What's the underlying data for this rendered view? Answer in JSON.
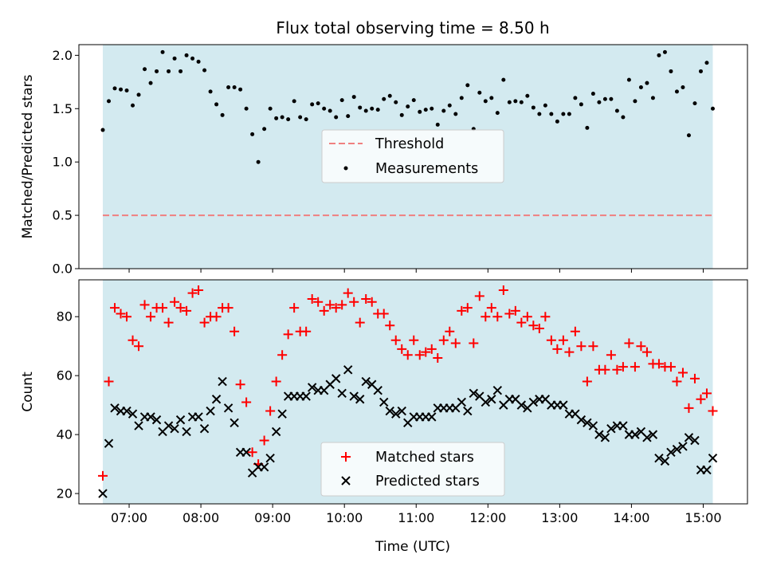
{
  "chart_data": [
    {
      "type": "scatter",
      "title": "Flux total observing time = 8.50 h",
      "xlabel": "",
      "ylabel": "Matched/Predicted stars",
      "xlim": [
        "06:18",
        "15:37"
      ],
      "ylim": [
        0,
        2.1
      ],
      "yticks": [
        0.0,
        0.5,
        1.0,
        1.5,
        2.0
      ],
      "ytick_labels": [
        "0.0",
        "0.5",
        "1.0",
        "1.5",
        "2.0"
      ],
      "xticks": [
        "07:00",
        "08:00",
        "09:00",
        "10:00",
        "11:00",
        "12:00",
        "13:00",
        "14:00",
        "15:00"
      ],
      "shaded_span": [
        "06:38",
        "15:08"
      ],
      "shade_color": "#d3eaf0",
      "legend": {
        "placement": "center",
        "entries": [
          "Threshold",
          "Measurements"
        ]
      },
      "threshold": {
        "name": "Threshold",
        "y": 0.5,
        "color": "#f08080",
        "style": "dashed"
      },
      "series": [
        {
          "name": "Measurements",
          "marker": "dot",
          "color": "#000000",
          "x": [
            "06:38",
            "06:43",
            "06:48",
            "06:53",
            "06:58",
            "07:03",
            "07:08",
            "07:13",
            "07:18",
            "07:23",
            "07:28",
            "07:33",
            "07:38",
            "07:43",
            "07:48",
            "07:53",
            "07:58",
            "08:03",
            "08:08",
            "08:13",
            "08:18",
            "08:23",
            "08:28",
            "08:33",
            "08:38",
            "08:43",
            "08:48",
            "08:53",
            "08:58",
            "09:03",
            "09:08",
            "09:13",
            "09:18",
            "09:23",
            "09:28",
            "09:33",
            "09:38",
            "09:43",
            "09:48",
            "09:53",
            "09:58",
            "10:03",
            "10:08",
            "10:13",
            "10:18",
            "10:23",
            "10:28",
            "10:33",
            "10:38",
            "10:43",
            "10:48",
            "10:53",
            "10:58",
            "11:03",
            "11:08",
            "11:13",
            "11:18",
            "11:23",
            "11:28",
            "11:33",
            "11:38",
            "11:43",
            "11:48",
            "11:53",
            "11:58",
            "12:03",
            "12:08",
            "12:13",
            "12:18",
            "12:23",
            "12:28",
            "12:33",
            "12:38",
            "12:43",
            "12:48",
            "12:53",
            "12:58",
            "13:03",
            "13:08",
            "13:13",
            "13:18",
            "13:23",
            "13:28",
            "13:33",
            "13:38",
            "13:43",
            "13:48",
            "13:53",
            "13:58",
            "14:03",
            "14:08",
            "14:13",
            "14:18",
            "14:23",
            "14:28",
            "14:33",
            "14:38",
            "14:43",
            "14:48",
            "14:53",
            "14:58",
            "15:03",
            "15:08"
          ],
          "y": [
            1.3,
            1.57,
            1.69,
            1.68,
            1.67,
            1.53,
            1.63,
            1.87,
            1.74,
            1.85,
            2.03,
            1.85,
            1.97,
            1.85,
            2.0,
            1.97,
            1.94,
            1.86,
            1.66,
            1.54,
            1.44,
            1.7,
            1.7,
            1.68,
            1.5,
            1.26,
            1.0,
            1.31,
            1.5,
            1.41,
            1.42,
            1.4,
            1.57,
            1.42,
            1.4,
            1.54,
            1.55,
            1.5,
            1.48,
            1.42,
            1.58,
            1.43,
            1.61,
            1.51,
            1.48,
            1.5,
            1.49,
            1.59,
            1.62,
            1.56,
            1.44,
            1.52,
            1.58,
            1.47,
            1.49,
            1.5,
            1.35,
            1.48,
            1.53,
            1.45,
            1.6,
            1.72,
            1.31,
            1.65,
            1.57,
            1.6,
            1.46,
            1.77,
            1.56,
            1.57,
            1.56,
            1.62,
            1.51,
            1.45,
            1.53,
            1.45,
            1.38,
            1.45,
            1.45,
            1.6,
            1.54,
            1.32,
            1.64,
            1.56,
            1.59,
            1.59,
            1.48,
            1.42,
            1.77,
            1.57,
            1.7,
            1.74,
            1.6,
            2.0,
            2.03,
            1.85,
            1.66,
            1.7,
            1.25,
            1.55,
            1.85,
            1.93,
            1.5
          ]
        }
      ]
    },
    {
      "type": "scatter",
      "title": "",
      "xlabel": "Time (UTC)",
      "ylabel": "Count",
      "xlim": [
        "06:18",
        "15:37"
      ],
      "ylim": [
        16.5,
        92.5
      ],
      "yticks": [
        20,
        40,
        60,
        80
      ],
      "ytick_labels": [
        "20",
        "40",
        "60",
        "80"
      ],
      "xticks": [
        "07:00",
        "08:00",
        "09:00",
        "10:00",
        "11:00",
        "12:00",
        "13:00",
        "14:00",
        "15:00"
      ],
      "xtick_labels": [
        "07:00",
        "08:00",
        "09:00",
        "10:00",
        "11:00",
        "12:00",
        "13:00",
        "14:00",
        "15:00"
      ],
      "shaded_span": [
        "06:38",
        "15:08"
      ],
      "shade_color": "#d3eaf0",
      "legend": {
        "placement": "lower-center",
        "entries": [
          "Matched stars",
          "Predicted stars"
        ]
      },
      "series": [
        {
          "name": "Matched stars",
          "marker": "plus",
          "color": "#ff0000",
          "x": [
            "06:38",
            "06:43",
            "06:48",
            "06:53",
            "06:58",
            "07:03",
            "07:08",
            "07:13",
            "07:18",
            "07:23",
            "07:28",
            "07:33",
            "07:38",
            "07:43",
            "07:48",
            "07:53",
            "07:58",
            "08:03",
            "08:08",
            "08:13",
            "08:18",
            "08:23",
            "08:28",
            "08:33",
            "08:38",
            "08:43",
            "08:48",
            "08:53",
            "08:58",
            "09:03",
            "09:08",
            "09:13",
            "09:18",
            "09:23",
            "09:28",
            "09:33",
            "09:38",
            "09:43",
            "09:48",
            "09:53",
            "09:58",
            "10:03",
            "10:08",
            "10:13",
            "10:18",
            "10:23",
            "10:28",
            "10:33",
            "10:38",
            "10:43",
            "10:48",
            "10:53",
            "10:58",
            "11:03",
            "11:08",
            "11:13",
            "11:18",
            "11:23",
            "11:28",
            "11:33",
            "11:38",
            "11:43",
            "11:48",
            "11:53",
            "11:58",
            "12:03",
            "12:08",
            "12:13",
            "12:18",
            "12:23",
            "12:28",
            "12:33",
            "12:38",
            "12:43",
            "12:48",
            "12:53",
            "12:58",
            "13:03",
            "13:08",
            "13:13",
            "13:18",
            "13:23",
            "13:28",
            "13:33",
            "13:38",
            "13:43",
            "13:48",
            "13:53",
            "13:58",
            "14:03",
            "14:08",
            "14:13",
            "14:18",
            "14:23",
            "14:28",
            "14:33",
            "14:38",
            "14:43",
            "14:48",
            "14:53",
            "14:58",
            "15:03",
            "15:08"
          ],
          "y": [
            26,
            58,
            83,
            81,
            80,
            72,
            70,
            84,
            80,
            83,
            83,
            78,
            85,
            83,
            82,
            88,
            89,
            78,
            80,
            80,
            83,
            83,
            75,
            57,
            51,
            34,
            30,
            38,
            48,
            58,
            67,
            74,
            83,
            75,
            75,
            86,
            85,
            82,
            84,
            83,
            84,
            88,
            85,
            78,
            86,
            85,
            81,
            81,
            77,
            72,
            69,
            67,
            72,
            67,
            68,
            69,
            66,
            72,
            75,
            71,
            82,
            83,
            71,
            87,
            80,
            83,
            80,
            89,
            81,
            82,
            78,
            80,
            77,
            76,
            80,
            72,
            69,
            72,
            68,
            75,
            70,
            58,
            70,
            62,
            62,
            67,
            62,
            63,
            71,
            63,
            70,
            68,
            64,
            64,
            63,
            63,
            58,
            61,
            49,
            59,
            52,
            54,
            48
          ]
        },
        {
          "name": "Predicted stars",
          "marker": "x",
          "color": "#000000",
          "x": [
            "06:38",
            "06:43",
            "06:48",
            "06:53",
            "06:58",
            "07:03",
            "07:08",
            "07:13",
            "07:18",
            "07:23",
            "07:28",
            "07:33",
            "07:38",
            "07:43",
            "07:48",
            "07:53",
            "07:58",
            "08:03",
            "08:08",
            "08:13",
            "08:18",
            "08:23",
            "08:28",
            "08:33",
            "08:38",
            "08:43",
            "08:48",
            "08:53",
            "08:58",
            "09:03",
            "09:08",
            "09:13",
            "09:18",
            "09:23",
            "09:28",
            "09:33",
            "09:38",
            "09:43",
            "09:48",
            "09:53",
            "09:58",
            "10:03",
            "10:08",
            "10:13",
            "10:18",
            "10:23",
            "10:28",
            "10:33",
            "10:38",
            "10:43",
            "10:48",
            "10:53",
            "10:58",
            "11:03",
            "11:08",
            "11:13",
            "11:18",
            "11:23",
            "11:28",
            "11:33",
            "11:38",
            "11:43",
            "11:48",
            "11:53",
            "11:58",
            "12:03",
            "12:08",
            "12:13",
            "12:18",
            "12:23",
            "12:28",
            "12:33",
            "12:38",
            "12:43",
            "12:48",
            "12:53",
            "12:58",
            "13:03",
            "13:08",
            "13:13",
            "13:18",
            "13:23",
            "13:28",
            "13:33",
            "13:38",
            "13:43",
            "13:48",
            "13:53",
            "13:58",
            "14:03",
            "14:08",
            "14:13",
            "14:18",
            "14:23",
            "14:28",
            "14:33",
            "14:38",
            "14:43",
            "14:48",
            "14:53",
            "14:58",
            "15:03",
            "15:08"
          ],
          "y": [
            20,
            37,
            49,
            48,
            48,
            47,
            43,
            46,
            46,
            45,
            41,
            43,
            42,
            45,
            41,
            46,
            46,
            42,
            48,
            52,
            58,
            49,
            44,
            34,
            34,
            27,
            29,
            29,
            32,
            41,
            47,
            53,
            53,
            53,
            53,
            56,
            55,
            55,
            57,
            59,
            54,
            62,
            53,
            52,
            58,
            57,
            55,
            51,
            48,
            47,
            48,
            44,
            46,
            46,
            46,
            46,
            49,
            49,
            49,
            49,
            51,
            48,
            54,
            53,
            51,
            52,
            55,
            50,
            52,
            52,
            50,
            49,
            51,
            52,
            52,
            50,
            50,
            50,
            47,
            47,
            45,
            44,
            43,
            40,
            39,
            42,
            43,
            43,
            40,
            40,
            41,
            39,
            40,
            32,
            31,
            34,
            35,
            36,
            39,
            38,
            28,
            28,
            32
          ]
        }
      ]
    }
  ]
}
